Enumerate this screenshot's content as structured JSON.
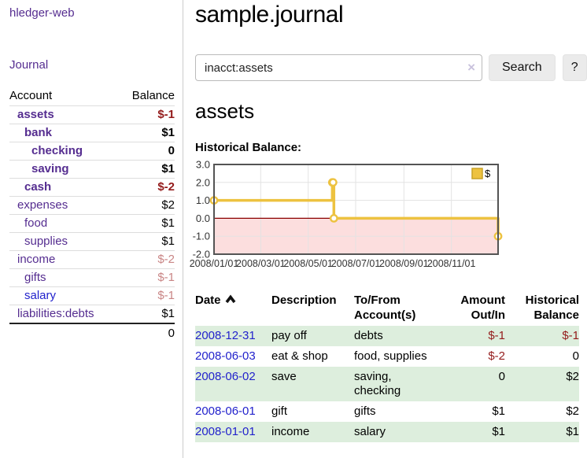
{
  "app": {
    "title": "hledger-web",
    "nav_journal": "Journal"
  },
  "sidebar": {
    "header": {
      "account": "Account",
      "balance": "Balance"
    },
    "accounts": [
      {
        "name": "assets",
        "balance": "$-1",
        "indent": 1,
        "bold": true,
        "balance_class": "neg-strong",
        "link_class": "plink"
      },
      {
        "name": "bank",
        "balance": "$1",
        "indent": 2,
        "bold": true,
        "balance_class": "",
        "link_class": "plink"
      },
      {
        "name": "checking",
        "balance": "0",
        "indent": 3,
        "bold": true,
        "balance_class": "",
        "link_class": "plink"
      },
      {
        "name": "saving",
        "balance": "$1",
        "indent": 3,
        "bold": true,
        "balance_class": "",
        "link_class": "plink"
      },
      {
        "name": "cash",
        "balance": "$-2",
        "indent": 2,
        "bold": true,
        "balance_class": "neg-strong",
        "link_class": "plink"
      },
      {
        "name": "expenses",
        "balance": "$2",
        "indent": 1,
        "bold": false,
        "balance_class": "",
        "link_class": "plink"
      },
      {
        "name": "food",
        "balance": "$1",
        "indent": 2,
        "bold": false,
        "balance_class": "",
        "link_class": "plink"
      },
      {
        "name": "supplies",
        "balance": "$1",
        "indent": 2,
        "bold": false,
        "balance_class": "",
        "link_class": "plink"
      },
      {
        "name": "income",
        "balance": "$-2",
        "indent": 1,
        "bold": false,
        "balance_class": "neg-soft",
        "link_class": "plink"
      },
      {
        "name": "gifts",
        "balance": "$-1",
        "indent": 2,
        "bold": false,
        "balance_class": "neg-soft",
        "link_class": "plink"
      },
      {
        "name": "salary",
        "balance": "$-1",
        "indent": 2,
        "bold": false,
        "balance_class": "neg-soft",
        "link_class": "blink"
      },
      {
        "name": "liabilities:debts",
        "balance": "$1",
        "indent": 1,
        "bold": false,
        "balance_class": "",
        "link_class": "plink"
      }
    ],
    "total": "0"
  },
  "main": {
    "title": "sample.journal",
    "search": {
      "value": "inacct:assets",
      "clear_icon": "×",
      "button": "Search",
      "help": "?"
    },
    "account_heading": "assets",
    "chart_label": "Historical Balance:"
  },
  "chart_data": {
    "type": "line",
    "title": "Historical Balance",
    "series": [
      {
        "name": "$",
        "color": "#edc240",
        "step": true,
        "points": [
          [
            "2008-01-01",
            1
          ],
          [
            "2008-06-01",
            2
          ],
          [
            "2008-06-02",
            2
          ],
          [
            "2008-06-03",
            0
          ],
          [
            "2008-12-31",
            -1
          ]
        ]
      }
    ],
    "xrange": [
      "2008-01-01",
      "2008-12-31"
    ],
    "ylim": [
      -2,
      3
    ],
    "yticks": [
      "3.0",
      "2.0",
      "1.0",
      "0.0",
      "-1.0",
      "-2.0"
    ],
    "xticks": [
      [
        "2008-01-01",
        "2008/01/01"
      ],
      [
        "2008-03-01",
        "2008/03/01"
      ],
      [
        "2008-05-01",
        "2008/05/01"
      ],
      [
        "2008-07-01",
        "2008/07/01"
      ],
      [
        "2008-09-01",
        "2008/09/01"
      ],
      [
        "2008-11-01",
        "2008/11/01"
      ]
    ],
    "legend": {
      "label": "$",
      "position": "top-right"
    },
    "grid": true,
    "negative_region_color": "#fcdede",
    "zero_line_color": "#8b0000",
    "border_color": "#545454",
    "gridline_color": "#e3e3e3"
  },
  "register": {
    "headers": [
      "Date",
      "Description",
      "To/From\nAccount(s)",
      "Amount\nOut/In",
      "Historical\nBalance"
    ],
    "rows": [
      {
        "date": "2008-12-31",
        "description": "pay off",
        "accounts": "debts",
        "amount": "$-1",
        "amount_neg": true,
        "balance": "$-1",
        "balance_neg": true
      },
      {
        "date": "2008-06-03",
        "description": "eat & shop",
        "accounts": "food, supplies",
        "amount": "$-2",
        "amount_neg": true,
        "balance": "0",
        "balance_neg": false
      },
      {
        "date": "2008-06-02",
        "description": "save",
        "accounts": "saving,\nchecking",
        "amount": "0",
        "amount_neg": false,
        "balance": "$2",
        "balance_neg": false
      },
      {
        "date": "2008-06-01",
        "description": "gift",
        "accounts": "gifts",
        "amount": "$1",
        "amount_neg": false,
        "balance": "$2",
        "balance_neg": false
      },
      {
        "date": "2008-01-01",
        "description": "income",
        "accounts": "salary",
        "amount": "$1",
        "amount_neg": false,
        "balance": "$1",
        "balance_neg": false
      }
    ]
  }
}
